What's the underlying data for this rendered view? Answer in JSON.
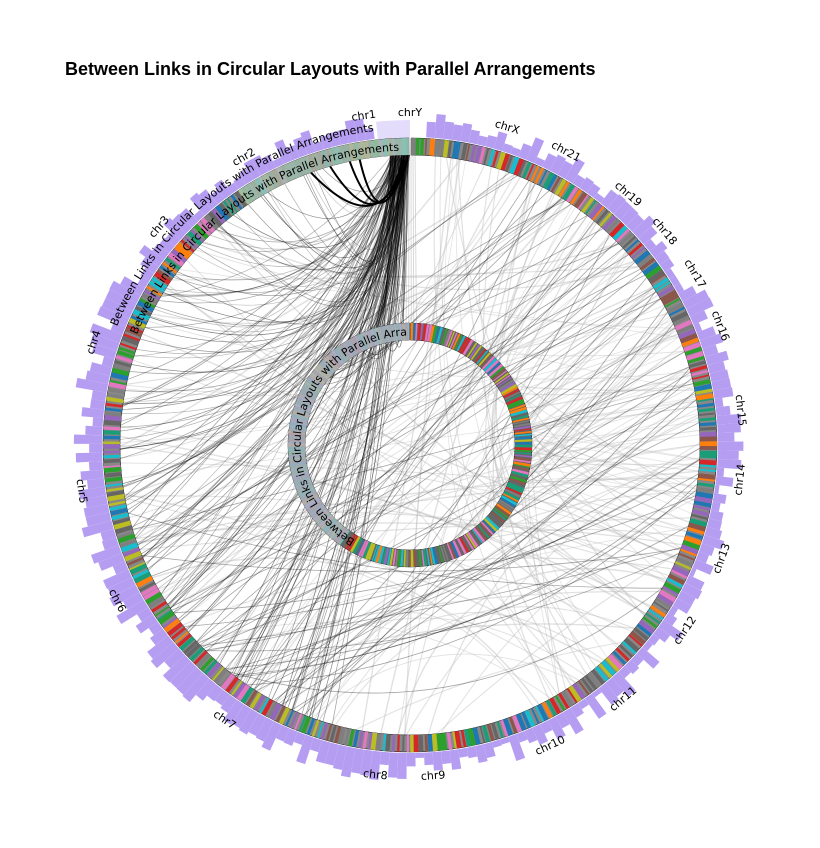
{
  "title": "Between Links in Circular Layouts with Parallel Arrangements",
  "track_label": "Between Links in Circular Layouts with Parallel Arrangements",
  "chromosomes": [
    "chr1",
    "chr2",
    "chr3",
    "chr4",
    "chr5",
    "chr6",
    "chr7",
    "chr8",
    "chr9",
    "chr10",
    "chr11",
    "chr12",
    "chr13",
    "chr14",
    "chr15",
    "chr16",
    "chr17",
    "chr18",
    "chr19",
    "chr21",
    "chrX",
    "chrY"
  ],
  "colors": {
    "histogram": "#b59ef2",
    "highlight_band": "#e4dcfb",
    "band_palette": [
      "#1f77b4",
      "#ff7f0e",
      "#2ca02c",
      "#d62728",
      "#9467bd",
      "#8c564b",
      "#e377c2",
      "#17becf",
      "#bcbd22",
      "#7f7f7f",
      "#1b9e77",
      "#666666"
    ],
    "link_gray": "#bdbdbd",
    "link_dark": "#000000",
    "outline": "#000000"
  }
}
